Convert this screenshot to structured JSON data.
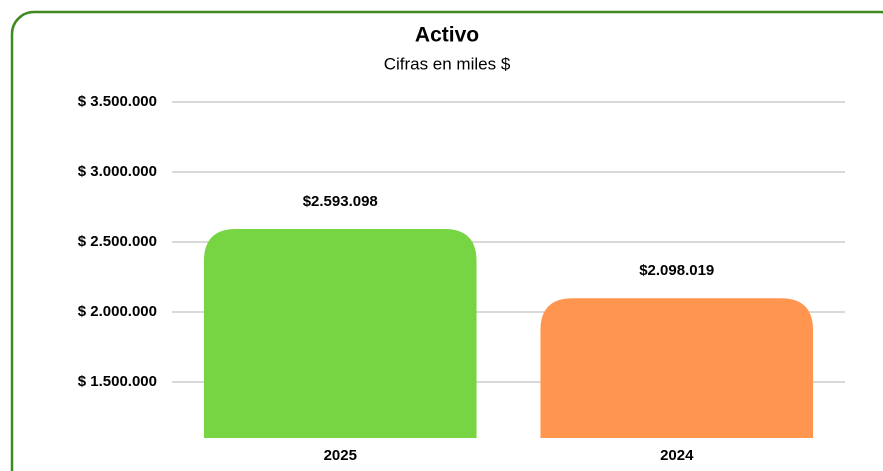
{
  "chart_data": {
    "type": "bar",
    "title": "Activo",
    "subtitle": "Cifras en miles $",
    "categories": [
      "2025",
      "2024"
    ],
    "values": [
      2593098,
      2098019
    ],
    "value_labels": [
      "$2.593.098",
      "$2.098.019"
    ],
    "colors": [
      "#77d443",
      "#ff954f"
    ],
    "ylim": [
      1100000,
      3500000
    ],
    "yticks": [
      {
        "value": 1500000,
        "label": "$ 1.500.000"
      },
      {
        "value": 2000000,
        "label": "$ 2.000.000"
      },
      {
        "value": 2500000,
        "label": "$ 2.500.000"
      },
      {
        "value": 3000000,
        "label": "$ 3.000.000"
      },
      {
        "value": 3500000,
        "label": "$ 3.500.000"
      }
    ],
    "grid": true
  }
}
